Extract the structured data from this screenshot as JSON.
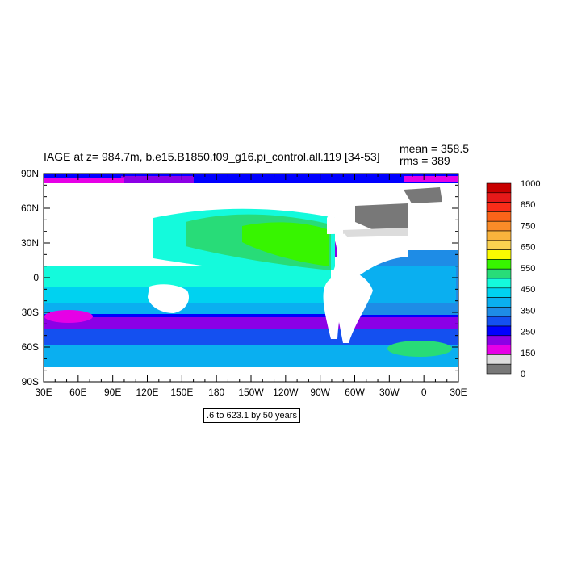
{
  "title": "IAGE at z= 984.7m, b.e15.B1850.f09_g16.pi_control.all.119 [34-53]",
  "stats": {
    "mean_label": "mean = 358.5",
    "rms_label": "rms = 389"
  },
  "note": ".6 to 623.1 by 50 years",
  "chart_data": {
    "type": "heatmap",
    "map_projection": "cylindrical equidistant",
    "longitude_range": [
      30,
      390
    ],
    "latitude_range": [
      -90,
      90
    ],
    "x_tick_labels": [
      "30E",
      "60E",
      "90E",
      "120E",
      "150E",
      "180",
      "150W",
      "120W",
      "90W",
      "60W",
      "30W",
      "0",
      "30E"
    ],
    "y_tick_labels": [
      "90N",
      "60N",
      "30N",
      "0",
      "30S",
      "60S",
      "90S"
    ],
    "colorbar": {
      "labels": [
        "1000",
        "850",
        "750",
        "650",
        "550",
        "450",
        "350",
        "250",
        "150",
        "0"
      ],
      "colors": [
        "#c80000",
        "#e61919",
        "#fa2d19",
        "#fa6419",
        "#fa8c28",
        "#fab43c",
        "#fad250",
        "#fafa00",
        "#37f500",
        "#28dc78",
        "#14fadc",
        "#00d2f0",
        "#0aaff0",
        "#1e8ce6",
        "#1450f0",
        "#0000ff",
        "#8c00e6",
        "#e600e6",
        "#dcdcdc",
        "#787878"
      ]
    },
    "field_description_values_years": {
      "north_pacific_max": 600,
      "southern_ocean_min": 150,
      "north_atlantic_min": 50,
      "arctic_min": 120
    }
  }
}
